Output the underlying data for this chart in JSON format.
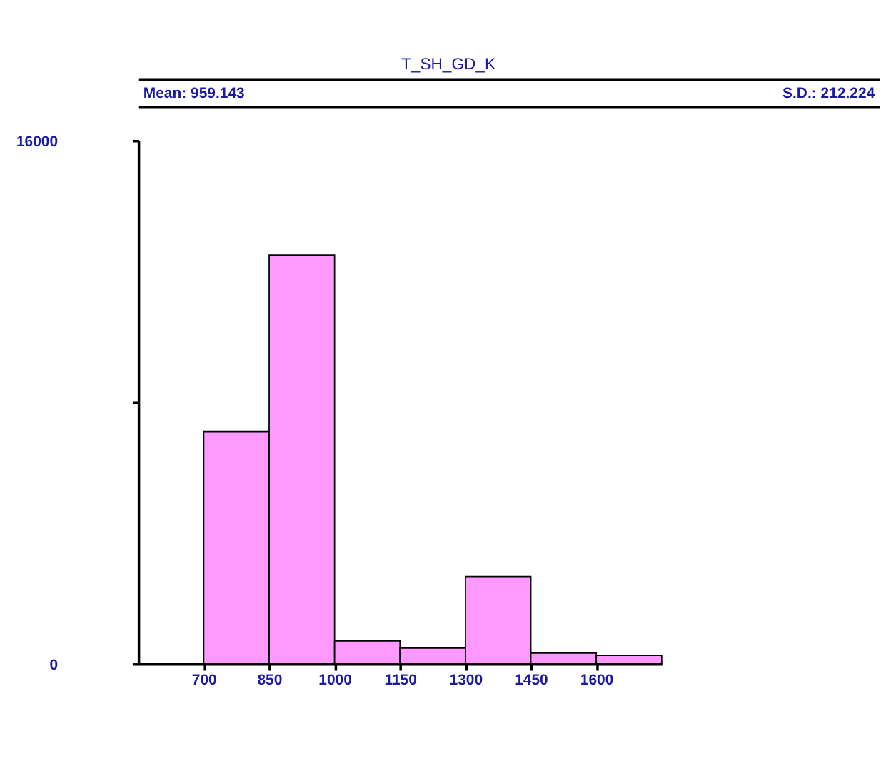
{
  "chart_data": {
    "type": "histogram",
    "title": "T_SH_GD_K",
    "annotations": [
      "Mean: 959.143",
      "S.D.: 212.224"
    ],
    "bins": [
      700,
      850,
      1000,
      1150,
      1300,
      1450,
      1600,
      1750
    ],
    "values": [
      7100,
      12500,
      700,
      480,
      2670,
      330,
      260
    ],
    "color": "#ff99ff",
    "xlim": [
      550,
      1750
    ],
    "xticks": [
      700,
      850,
      1000,
      1150,
      1300,
      1450,
      1600
    ],
    "ylim": [
      0,
      16000
    ],
    "yticks": [
      0,
      {
        "value": 8000,
        "label": null
      },
      16000
    ]
  }
}
